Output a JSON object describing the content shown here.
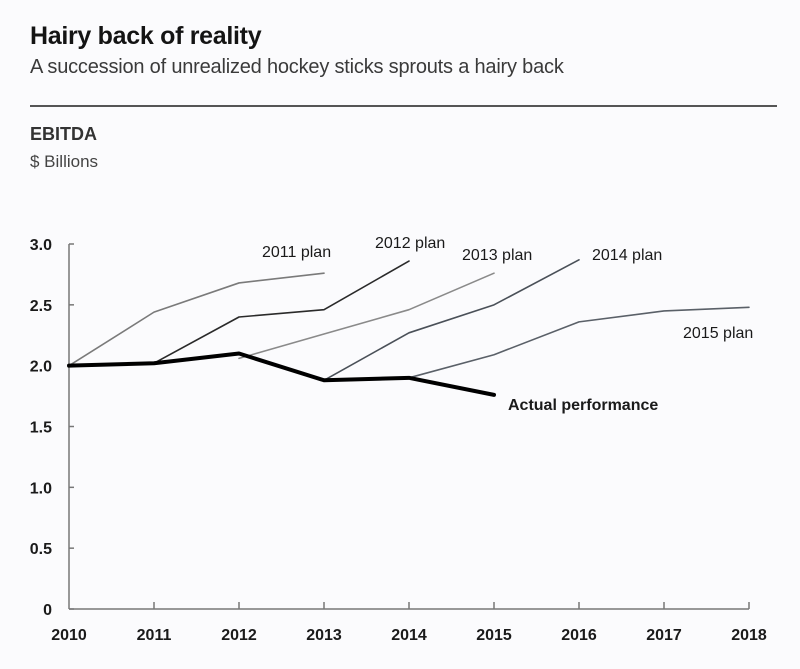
{
  "header": {
    "title": "Hairy back of reality",
    "subtitle": "A succession of unrealized hockey sticks sprouts a hairy back",
    "metric": "EBITDA",
    "unit": "$ Billions"
  },
  "chart_data": {
    "type": "line",
    "title": "Hairy back of reality",
    "subtitle": "A succession of unrealized hockey sticks sprouts a hairy back",
    "xlabel": "",
    "ylabel": "EBITDA ($ Billions)",
    "x": [
      2010,
      2011,
      2012,
      2013,
      2014,
      2015,
      2016,
      2017,
      2018
    ],
    "x_tick_labels": [
      "2010",
      "2011",
      "2012",
      "2013",
      "2014",
      "2015",
      "2016",
      "2017",
      "2018"
    ],
    "y_ticks": [
      0,
      0.5,
      1.0,
      1.5,
      2.0,
      2.5,
      3.0
    ],
    "y_tick_labels": [
      "0",
      "0.5",
      "1.0",
      "1.5",
      "2.0",
      "2.5",
      "3.0"
    ],
    "xlim": [
      2010,
      2018
    ],
    "ylim": [
      0,
      3.0
    ],
    "grid": false,
    "legend": "inline labels",
    "series": [
      {
        "name": "2011 plan",
        "color": "#7a7a7a",
        "x": [
          2010,
          2011,
          2012,
          2013
        ],
        "values": [
          2.0,
          2.44,
          2.68,
          2.76
        ]
      },
      {
        "name": "2012 plan",
        "color": "#2a2a2a",
        "x": [
          2011,
          2012,
          2013,
          2014
        ],
        "values": [
          2.02,
          2.4,
          2.46,
          2.86
        ]
      },
      {
        "name": "2013 plan",
        "color": "#8a8a8a",
        "x": [
          2012,
          2013,
          2014,
          2015
        ],
        "values": [
          2.06,
          2.26,
          2.46,
          2.76
        ]
      },
      {
        "name": "2014 plan",
        "color": "#4a5058",
        "x": [
          2013,
          2014,
          2015,
          2016
        ],
        "values": [
          1.88,
          2.27,
          2.5,
          2.87
        ]
      },
      {
        "name": "2015 plan",
        "color": "#5a6068",
        "x": [
          2014,
          2015,
          2016,
          2017,
          2018
        ],
        "values": [
          1.9,
          2.09,
          2.36,
          2.45,
          2.48
        ]
      },
      {
        "name": "Actual performance",
        "color": "#000000",
        "x": [
          2010,
          2011,
          2012,
          2013,
          2014,
          2015
        ],
        "values": [
          2.0,
          2.02,
          2.1,
          1.88,
          1.9,
          1.76
        ]
      }
    ]
  }
}
